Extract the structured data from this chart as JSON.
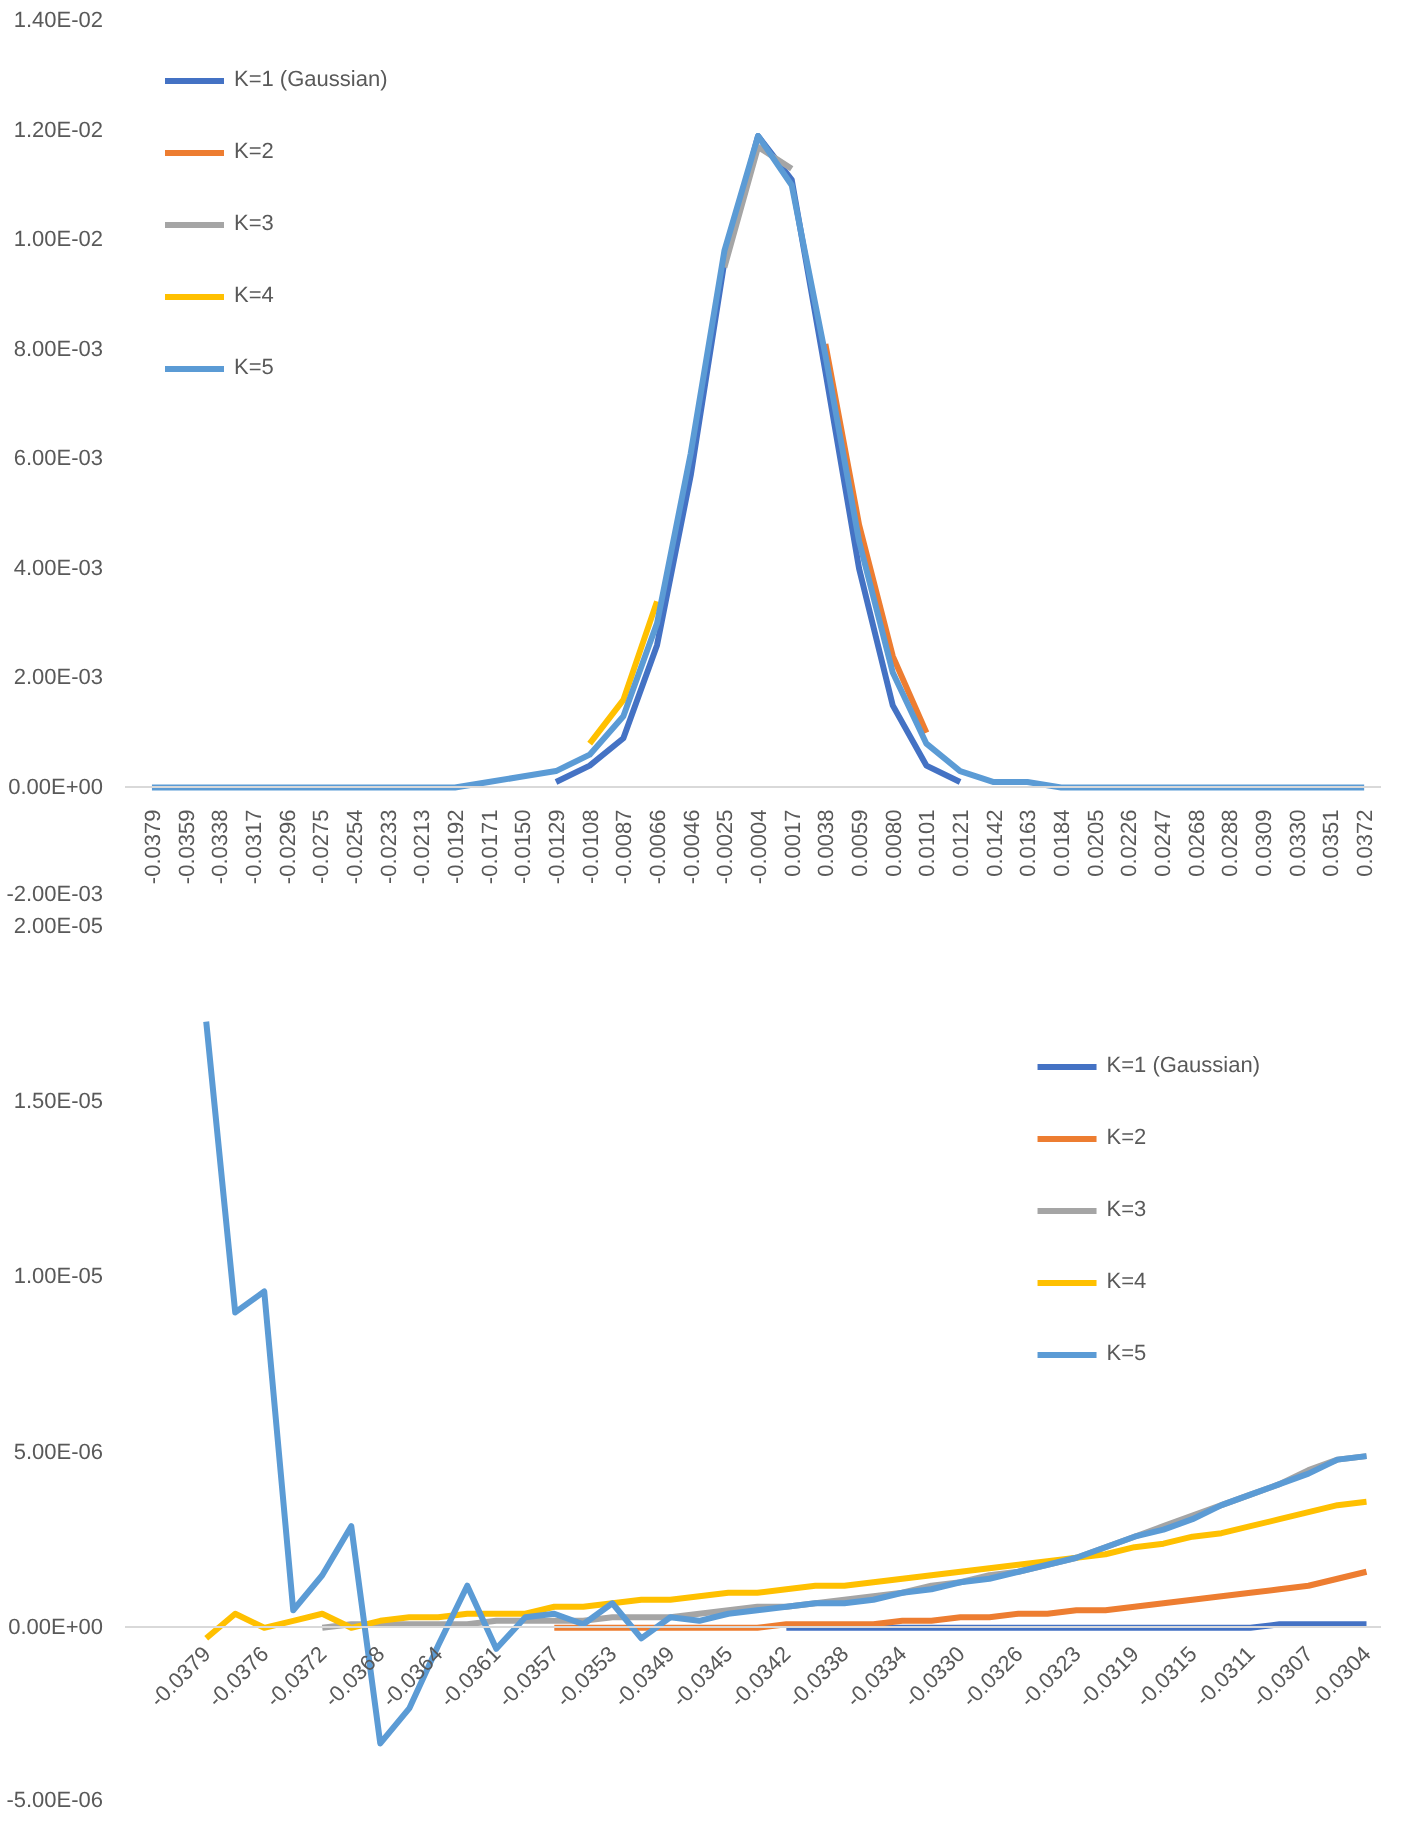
{
  "chart_data": [
    {
      "type": "line",
      "legend": "top left",
      "categories": [
        "-0.0379",
        "-0.0359",
        "-0.0338",
        "-0.0317",
        "-0.0296",
        "-0.0275",
        "-0.0254",
        "-0.0233",
        "-0.0213",
        "-0.0192",
        "-0.0171",
        "-0.0150",
        "-0.0129",
        "-0.0108",
        "-0.0087",
        "-0.0066",
        "-0.0046",
        "-0.0025",
        "-0.0004",
        "0.0017",
        "0.0038",
        "0.0059",
        "0.0080",
        "0.0101",
        "0.0121",
        "0.0142",
        "0.0163",
        "0.0184",
        "0.0205",
        "0.0226",
        "0.0247",
        "0.0268",
        "0.0288",
        "0.0309",
        "0.0330",
        "0.0351",
        "0.0372"
      ],
      "ylim": [
        -0.002,
        0.014
      ],
      "yticks": [
        {
          "value": -0.002,
          "label": "-2.00E-03"
        },
        {
          "value": 0,
          "label": "0.00E+00"
        },
        {
          "value": 0.002,
          "label": "2.00E-03"
        },
        {
          "value": 0.004,
          "label": "4.00E-03"
        },
        {
          "value": 0.006,
          "label": "6.00E-03"
        },
        {
          "value": 0.008,
          "label": "8.00E-03"
        },
        {
          "value": 0.01,
          "label": "1.00E-02"
        },
        {
          "value": 0.012,
          "label": "1.20E-02"
        },
        {
          "value": 0.014,
          "label": "1.40E-02"
        }
      ],
      "series": [
        {
          "name": "K=1 (Gaussian)",
          "color": "#4472c4",
          "values": [
            null,
            null,
            null,
            null,
            null,
            null,
            null,
            null,
            null,
            null,
            null,
            null,
            0.0001,
            0.0004,
            0.0009,
            0.0026,
            0.0057,
            0.0096,
            0.0119,
            0.0111,
            0.0076,
            0.004,
            0.0015,
            0.0004,
            0.0001,
            null,
            null,
            null,
            null,
            null,
            null,
            null,
            null,
            null,
            null,
            null,
            null
          ]
        },
        {
          "name": "K=2",
          "color": "#ed7d31",
          "values": [
            null,
            null,
            null,
            null,
            null,
            null,
            null,
            null,
            null,
            null,
            null,
            null,
            null,
            null,
            null,
            null,
            null,
            null,
            null,
            null,
            0.0081,
            0.0048,
            0.0024,
            0.001,
            null,
            null,
            null,
            null,
            null,
            null,
            null,
            null,
            null,
            null,
            null,
            null,
            null
          ]
        },
        {
          "name": "K=3",
          "color": "#a5a5a5",
          "values": [
            null,
            null,
            null,
            null,
            null,
            null,
            null,
            null,
            null,
            null,
            null,
            null,
            null,
            null,
            null,
            null,
            null,
            0.0095,
            0.0117,
            0.0113,
            null,
            null,
            null,
            null,
            null,
            null,
            null,
            null,
            null,
            null,
            null,
            null,
            null,
            null,
            null,
            null,
            null
          ]
        },
        {
          "name": "K=4",
          "color": "#ffc000",
          "values": [
            null,
            null,
            null,
            null,
            null,
            null,
            null,
            null,
            null,
            null,
            null,
            null,
            null,
            0.0008,
            0.0016,
            0.0034,
            null,
            null,
            null,
            null,
            null,
            null,
            null,
            null,
            null,
            null,
            null,
            null,
            null,
            null,
            null,
            null,
            null,
            null,
            null,
            null,
            null
          ]
        },
        {
          "name": "K=5",
          "color": "#5b9bd5",
          "values": [
            0,
            0,
            0,
            0,
            0,
            0,
            0,
            0,
            0,
            0,
            0.0001,
            0.0002,
            0.0003,
            0.0006,
            0.0013,
            0.003,
            0.0061,
            0.0098,
            0.0119,
            0.011,
            0.0079,
            0.0045,
            0.0021,
            0.0008,
            0.0003,
            0.0001,
            0.0001,
            0,
            0,
            0,
            0,
            0,
            0,
            0,
            0,
            0,
            0
          ]
        }
      ]
    },
    {
      "type": "line",
      "legend": "top right",
      "categories": [
        "-0.0379",
        null,
        "-0.0376",
        null,
        "-0.0372",
        null,
        "-0.0368",
        null,
        "-0.0364",
        null,
        "-0.0361",
        null,
        "-0.0357",
        null,
        "-0.0353",
        null,
        "-0.0349",
        null,
        "-0.0345",
        null,
        "-0.0342",
        null,
        "-0.0338",
        null,
        "-0.0334",
        null,
        "-0.0330",
        null,
        "-0.0326",
        null,
        "-0.0323",
        null,
        "-0.0319",
        null,
        "-0.0315",
        null,
        "-0.0311",
        null,
        "-0.0307",
        null,
        "-0.0304"
      ],
      "ylim": [
        -5e-06,
        2e-05
      ],
      "yticks": [
        {
          "value": -5e-06,
          "label": "-5.00E-06"
        },
        {
          "value": 0,
          "label": "0.00E+00"
        },
        {
          "value": 5e-06,
          "label": "5.00E-06"
        },
        {
          "value": 1e-05,
          "label": "1.00E-05"
        },
        {
          "value": 1.5e-05,
          "label": "1.50E-05"
        },
        {
          "value": 2e-05,
          "label": "2.00E-05"
        }
      ],
      "series": [
        {
          "name": "K=1 (Gaussian)",
          "color": "#4472c4",
          "values": [
            null,
            null,
            null,
            null,
            null,
            null,
            null,
            null,
            null,
            null,
            null,
            null,
            null,
            null,
            null,
            null,
            null,
            null,
            null,
            null,
            0,
            0,
            0,
            0,
            0,
            0,
            0,
            0,
            0,
            0,
            0,
            0,
            0,
            0,
            0,
            0,
            0,
            1e-07,
            1e-07,
            1e-07,
            1e-07
          ]
        },
        {
          "name": "K=2",
          "color": "#ed7d31",
          "values": [
            null,
            null,
            null,
            null,
            null,
            null,
            null,
            null,
            null,
            null,
            null,
            null,
            0,
            0,
            0,
            0,
            0,
            0,
            0,
            0,
            1e-07,
            1e-07,
            1e-07,
            1e-07,
            2e-07,
            2e-07,
            3e-07,
            3e-07,
            4e-07,
            4e-07,
            5e-07,
            5e-07,
            6e-07,
            7e-07,
            8e-07,
            9e-07,
            1e-06,
            1.1e-06,
            1.2e-06,
            1.4e-06,
            1.6e-06
          ]
        },
        {
          "name": "K=3",
          "color": "#a5a5a5",
          "values": [
            null,
            null,
            null,
            null,
            0,
            1e-07,
            1e-07,
            1e-07,
            1e-07,
            1e-07,
            2e-07,
            2e-07,
            2e-07,
            2e-07,
            3e-07,
            3e-07,
            3e-07,
            4e-07,
            5e-07,
            6e-07,
            6e-07,
            7e-07,
            8e-07,
            9e-07,
            1e-06,
            1.2e-06,
            1.3e-06,
            1.5e-06,
            1.6e-06,
            1.8e-06,
            2e-06,
            2.3e-06,
            2.6e-06,
            2.9e-06,
            3.2e-06,
            3.5e-06,
            3.8e-06,
            4.1e-06,
            4.5e-06,
            4.8e-06,
            4.9e-06
          ]
        },
        {
          "name": "K=4",
          "color": "#ffc000",
          "values": [
            -3e-07,
            4e-07,
            0,
            2e-07,
            4e-07,
            0,
            2e-07,
            3e-07,
            3e-07,
            4e-07,
            4e-07,
            4e-07,
            6e-07,
            6e-07,
            7e-07,
            8e-07,
            8e-07,
            9e-07,
            1e-06,
            1e-06,
            1.1e-06,
            1.2e-06,
            1.2e-06,
            1.3e-06,
            1.4e-06,
            1.5e-06,
            1.6e-06,
            1.7e-06,
            1.8e-06,
            1.9e-06,
            2e-06,
            2.1e-06,
            2.3e-06,
            2.4e-06,
            2.6e-06,
            2.7e-06,
            2.9e-06,
            3.1e-06,
            3.3e-06,
            3.5e-06,
            3.6e-06
          ]
        },
        {
          "name": "K=5",
          "color": "#5b9bd5",
          "values": [
            1.73e-05,
            9e-06,
            9.6e-06,
            5e-07,
            1.5e-06,
            2.9e-06,
            -3.3e-06,
            -2.3e-06,
            -5e-07,
            1.2e-06,
            -6e-07,
            3e-07,
            4e-07,
            1e-07,
            7e-07,
            -3e-07,
            3e-07,
            2e-07,
            4e-07,
            5e-07,
            6e-07,
            7e-07,
            7e-07,
            8e-07,
            1e-06,
            1.1e-06,
            1.3e-06,
            1.4e-06,
            1.6e-06,
            1.8e-06,
            2e-06,
            2.3e-06,
            2.6e-06,
            2.8e-06,
            3.1e-06,
            3.5e-06,
            3.8e-06,
            4.1e-06,
            4.4e-06,
            4.8e-06,
            4.9e-06
          ]
        }
      ]
    }
  ]
}
